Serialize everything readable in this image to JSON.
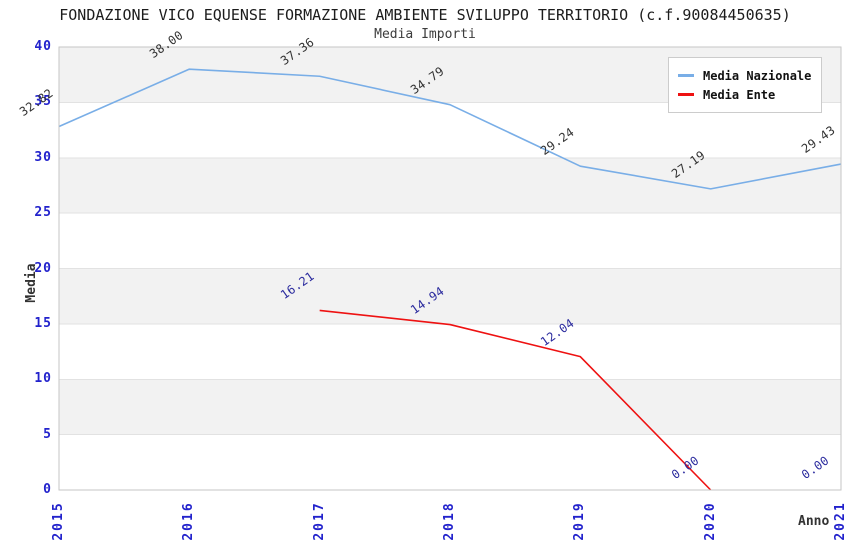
{
  "chart_data": {
    "type": "line",
    "title": "FONDAZIONE VICO EQUENSE FORMAZIONE AMBIENTE SVILUPPO TERRITORIO (c.f.90084450635)",
    "subtitle": "Media Importi",
    "xlabel": "Anno",
    "ylabel": "Media",
    "x": [
      2015,
      2016,
      2017,
      2018,
      2019,
      2020,
      2021
    ],
    "ylim": [
      0,
      40
    ],
    "ytick_step": 5,
    "grid": "alternating-horizontal-bands",
    "legend_position": "top-right",
    "colors": {
      "tick_label": "#2222cc",
      "band_gray": "#f2f2f2",
      "grid_line": "#e2e2e2",
      "plot_border": "#c6c6c6",
      "title": "#1c1c1c",
      "axis_title": "#333333"
    },
    "series": [
      {
        "name": "Media Nazionale",
        "color": "#79aee7",
        "label_color": "#333333",
        "x": [
          2015,
          2016,
          2017,
          2018,
          2019,
          2020,
          2021
        ],
        "values": [
          32.82,
          38.0,
          37.36,
          34.79,
          29.24,
          27.19,
          29.43
        ]
      },
      {
        "name": "Media Ente",
        "color": "#ee1111",
        "label_color": "#2b2b9e",
        "x": [
          2017,
          2018,
          2019,
          2020,
          2021
        ],
        "values": [
          16.21,
          14.94,
          12.04,
          0.0,
          0.0
        ],
        "line_drawn_until_x": 2020
      }
    ]
  }
}
